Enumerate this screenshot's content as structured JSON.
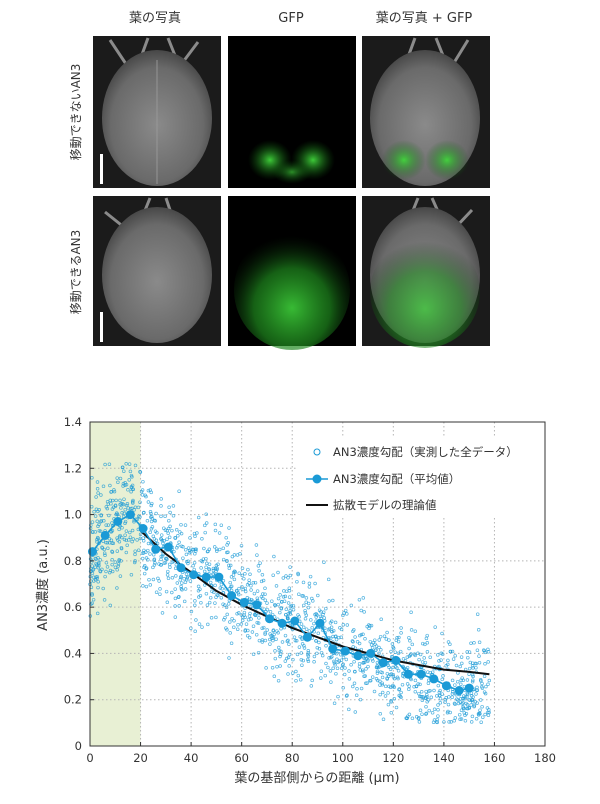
{
  "panel_grid": {
    "column_headers": [
      "葉の写真",
      "GFP",
      "葉の写真 + GFP"
    ],
    "row_labels": [
      "移動できないAN3",
      "移動できるAN3"
    ]
  },
  "chart_data": {
    "type": "scatter",
    "xlabel": "葉の基部側からの距離 (μm)",
    "ylabel": "AN3濃度 (a.u.)",
    "xlim": [
      0,
      180
    ],
    "ylim": [
      0,
      1.4
    ],
    "x_ticks": [
      "0",
      "20",
      "40",
      "60",
      "80",
      "100",
      "120",
      "140",
      "160",
      "180"
    ],
    "y_ticks": [
      "0",
      "0.2",
      "0.4",
      "0.6",
      "0.8",
      "1.0",
      "1.2",
      "1.4"
    ],
    "grid": true,
    "shaded_region_x": [
      0,
      20
    ],
    "legend_position": "top-right",
    "colors": {
      "data": "#1a9ad6",
      "model": "#111111",
      "shade": "#e8f0d4"
    },
    "series": [
      {
        "name": "AN3濃度勾配（実測した全データ）",
        "style": "open-circle-scatter",
        "note_values": "dense cloud of ~1500 points around the mean curve, spread ±0.15"
      },
      {
        "name": "AN3濃度勾配（平均値）",
        "style": "line-with-markers",
        "x": [
          1,
          6,
          11,
          16,
          21,
          26,
          31,
          36,
          41,
          46,
          51,
          56,
          61,
          66,
          71,
          76,
          81,
          86,
          91,
          96,
          101,
          106,
          111,
          116,
          121,
          126,
          131,
          136,
          141,
          146,
          150
        ],
        "y": [
          0.84,
          0.91,
          0.97,
          1.0,
          0.94,
          0.85,
          0.86,
          0.77,
          0.74,
          0.73,
          0.73,
          0.65,
          0.62,
          0.61,
          0.55,
          0.53,
          0.54,
          0.47,
          0.53,
          0.42,
          0.41,
          0.39,
          0.4,
          0.36,
          0.37,
          0.31,
          0.31,
          0.29,
          0.26,
          0.24,
          0.25
        ]
      },
      {
        "name": "拡散モデルの理論値",
        "style": "line",
        "x": [
          20,
          30,
          40,
          50,
          60,
          70,
          80,
          90,
          100,
          110,
          120,
          130,
          140,
          150,
          158
        ],
        "y": [
          0.93,
          0.83,
          0.75,
          0.67,
          0.61,
          0.56,
          0.51,
          0.47,
          0.43,
          0.4,
          0.37,
          0.35,
          0.33,
          0.32,
          0.31
        ]
      }
    ]
  }
}
